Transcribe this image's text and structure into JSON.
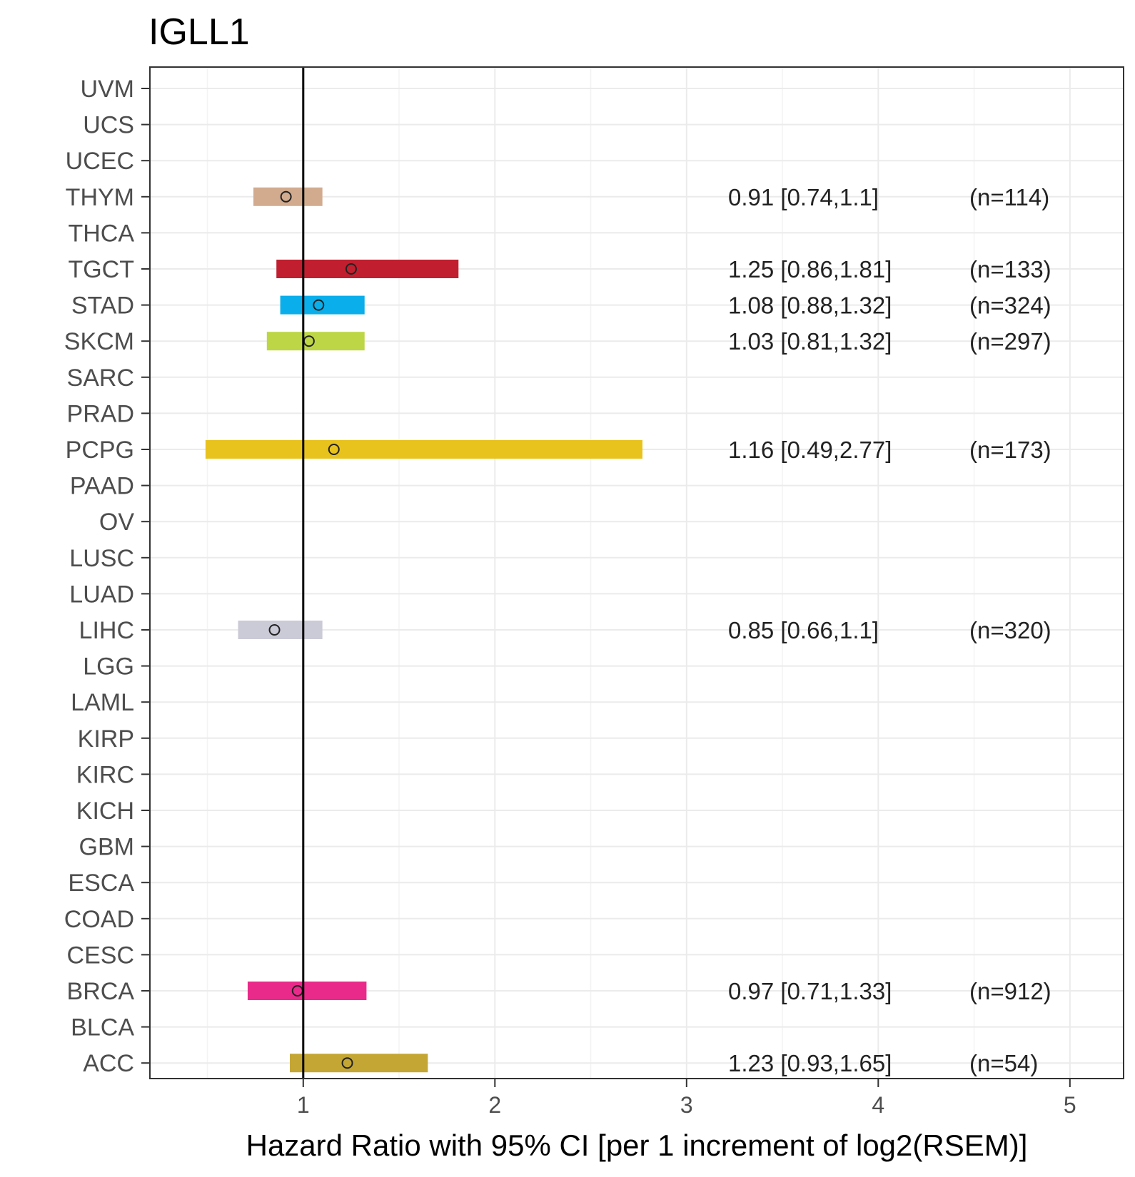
{
  "chart_data": {
    "type": "forest",
    "title": "IGLL1",
    "xlabel": "Hazard Ratio with 95% CI [per 1 increment of log2(RSEM)]",
    "ylabel": "",
    "xlim": [
      0.2,
      5.28
    ],
    "xticks": [
      1,
      2,
      3,
      4,
      5
    ],
    "reference_line": 1,
    "grid": true,
    "categories": [
      "UVM",
      "UCS",
      "UCEC",
      "THYM",
      "THCA",
      "TGCT",
      "STAD",
      "SKCM",
      "SARC",
      "PRAD",
      "PCPG",
      "PAAD",
      "OV",
      "LUSC",
      "LUAD",
      "LIHC",
      "LGG",
      "LAML",
      "KIRP",
      "KIRC",
      "KICH",
      "GBM",
      "ESCA",
      "COAD",
      "CESC",
      "BRCA",
      "BLCA",
      "ACC"
    ],
    "estimates": [
      {
        "category": "THYM",
        "hr": 0.91,
        "low": 0.74,
        "high": 1.1,
        "ci_text": "0.91 [0.74,1.1]",
        "n_text": "(n=114)",
        "color": "#d2ab8e"
      },
      {
        "category": "TGCT",
        "hr": 1.25,
        "low": 0.86,
        "high": 1.81,
        "ci_text": "1.25 [0.86,1.81]",
        "n_text": "(n=133)",
        "color": "#c11f2f"
      },
      {
        "category": "STAD",
        "hr": 1.08,
        "low": 0.88,
        "high": 1.32,
        "ci_text": "1.08 [0.88,1.32]",
        "n_text": "(n=324)",
        "color": "#0aaeea"
      },
      {
        "category": "SKCM",
        "hr": 1.03,
        "low": 0.81,
        "high": 1.32,
        "ci_text": "1.03 [0.81,1.32]",
        "n_text": "(n=297)",
        "color": "#bdd645"
      },
      {
        "category": "PCPG",
        "hr": 1.16,
        "low": 0.49,
        "high": 2.77,
        "ci_text": "1.16 [0.49,2.77]",
        "n_text": "(n=173)",
        "color": "#e8c31e"
      },
      {
        "category": "LIHC",
        "hr": 0.85,
        "low": 0.66,
        "high": 1.1,
        "ci_text": "0.85 [0.66,1.1]",
        "n_text": "(n=320)",
        "color": "#cbcad7"
      },
      {
        "category": "BRCA",
        "hr": 0.97,
        "low": 0.71,
        "high": 1.33,
        "ci_text": "0.97 [0.71,1.33]",
        "n_text": "(n=912)",
        "color": "#ea2a8b"
      },
      {
        "category": "ACC",
        "hr": 1.23,
        "low": 0.93,
        "high": 1.65,
        "ci_text": "1.23 [0.93,1.65]",
        "n_text": "(n=54)",
        "color": "#c4a634"
      }
    ]
  }
}
